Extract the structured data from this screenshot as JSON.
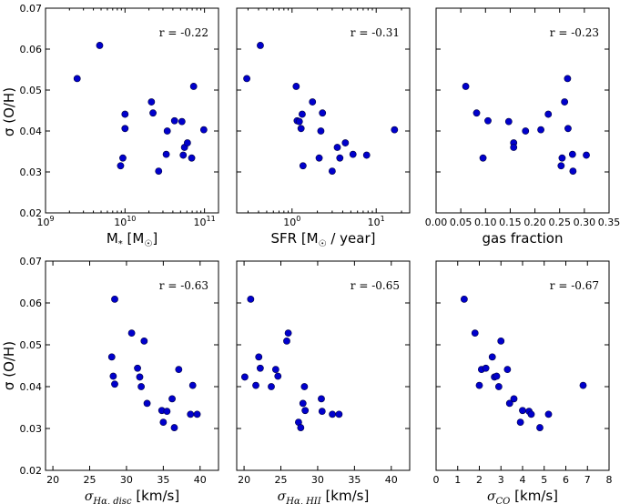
{
  "colors": {
    "marker": "#0000cc",
    "marker_edge": "#000040",
    "axes": "#000000",
    "background": "#ffffff"
  },
  "shared_ylabel": "σ (O/H)",
  "chart_data": [
    {
      "type": "scatter",
      "id": "mstar",
      "xscale": "log",
      "xlim": [
        1000000000,
        150000000000
      ],
      "ylim": [
        0.02,
        0.07
      ],
      "xticks": [
        {
          "v": 1000000000,
          "label": "10^9"
        },
        {
          "v": 10000000000,
          "label": "10^10"
        },
        {
          "v": 100000000000,
          "label": "10^11"
        }
      ],
      "yticks": [
        0.02,
        0.03,
        0.04,
        0.05,
        0.06,
        0.07
      ],
      "ytick_labels": [
        "0.02",
        "0.03",
        "0.04",
        "0.05",
        "0.06",
        "0.07"
      ],
      "xlabel": "M",
      "xlabel_sub": "*",
      "xlabel_unit": " [M",
      "xlabel_unit_sub": "☉",
      "xlabel_end": "]",
      "annotation": "r = -0.22",
      "x": [
        2500000000,
        4800000000,
        8800000000,
        9400000000,
        10000000000,
        10000000000,
        21500000000,
        22500000000,
        26500000000,
        33000000000,
        34000000000,
        42000000000,
        52000000000,
        54000000000,
        56000000000,
        61000000000,
        69000000000,
        73000000000,
        98000000000
      ],
      "y": [
        0.0528,
        0.0609,
        0.0315,
        0.0334,
        0.0406,
        0.0441,
        0.0471,
        0.0444,
        0.0302,
        0.0343,
        0.04,
        0.0425,
        0.0423,
        0.0341,
        0.036,
        0.0371,
        0.0334,
        0.0509,
        0.0403
      ]
    },
    {
      "type": "scatter",
      "id": "sfr",
      "xscale": "log",
      "xlim": [
        0.22,
        25
      ],
      "ylim": [
        0.02,
        0.07
      ],
      "xticks": [
        {
          "v": 1,
          "label": "10^0"
        },
        {
          "v": 10,
          "label": "10^1"
        }
      ],
      "yticks": [
        0.02,
        0.03,
        0.04,
        0.05,
        0.06,
        0.07
      ],
      "ytick_labels": [],
      "xlabel": "SFR [M",
      "xlabel_sub": "☉",
      "xlabel_end": " / year]",
      "annotation": "r = -0.31",
      "x": [
        0.29,
        0.42,
        1.12,
        1.15,
        1.22,
        1.28,
        1.32,
        1.35,
        1.75,
        2.1,
        2.2,
        2.3,
        3.0,
        3.45,
        3.7,
        4.3,
        5.3,
        7.7,
        16.5
      ],
      "y": [
        0.0528,
        0.0609,
        0.0509,
        0.0425,
        0.0423,
        0.0406,
        0.0441,
        0.0315,
        0.0471,
        0.0334,
        0.04,
        0.0444,
        0.0302,
        0.036,
        0.0334,
        0.0371,
        0.0343,
        0.0341,
        0.0403
      ]
    },
    {
      "type": "scatter",
      "id": "gasfrac",
      "xscale": "linear",
      "xlim": [
        0,
        0.35
      ],
      "ylim": [
        0.02,
        0.07
      ],
      "xticks": [
        {
          "v": 0,
          "label": "0.00"
        },
        {
          "v": 0.05,
          "label": "0.05"
        },
        {
          "v": 0.1,
          "label": "0.10"
        },
        {
          "v": 0.15,
          "label": "0.15"
        },
        {
          "v": 0.2,
          "label": "0.20"
        },
        {
          "v": 0.25,
          "label": "0.25"
        },
        {
          "v": 0.3,
          "label": "0.30"
        },
        {
          "v": 0.35,
          "label": "0.35"
        }
      ],
      "yticks": [
        0.02,
        0.03,
        0.04,
        0.05,
        0.06,
        0.07
      ],
      "ytick_labels": [],
      "xlabel": "gas fraction",
      "annotation": "r = -0.23",
      "x": [
        0.06,
        0.082,
        0.095,
        0.105,
        0.147,
        0.157,
        0.157,
        0.181,
        0.212,
        0.227,
        0.253,
        0.255,
        0.26,
        0.266,
        0.267,
        0.276,
        0.277,
        0.304
      ],
      "y": [
        0.0509,
        0.0444,
        0.0334,
        0.0425,
        0.0423,
        0.0371,
        0.036,
        0.04,
        0.0403,
        0.0441,
        0.0315,
        0.0334,
        0.0471,
        0.0528,
        0.0406,
        0.0343,
        0.0302,
        0.0341
      ]
    },
    {
      "type": "scatter",
      "id": "sig-disc",
      "xscale": "linear",
      "xlim": [
        19,
        42.5
      ],
      "ylim": [
        0.02,
        0.07
      ],
      "xticks": [
        {
          "v": 20,
          "label": "20"
        },
        {
          "v": 25,
          "label": "25"
        },
        {
          "v": 30,
          "label": "30"
        },
        {
          "v": 35,
          "label": "35"
        },
        {
          "v": 40,
          "label": "40"
        }
      ],
      "yticks": [
        0.02,
        0.03,
        0.04,
        0.05,
        0.06,
        0.07
      ],
      "ytick_labels": [
        "0.02",
        "0.03",
        "0.04",
        "0.05",
        "0.06",
        "0.07"
      ],
      "xlabel": "σ",
      "xlabel_sub": "Hα, disc",
      "xlabel_end": " [km/s]",
      "annotation": "r = -0.63",
      "x": [
        28.0,
        28.4,
        28.2,
        28.4,
        30.7,
        31.5,
        31.8,
        32.0,
        32.4,
        32.8,
        34.8,
        35.0,
        35.5,
        36.2,
        36.5,
        37.1,
        38.7,
        39.0,
        39.6
      ],
      "y": [
        0.0471,
        0.0609,
        0.0425,
        0.0406,
        0.0528,
        0.0444,
        0.0423,
        0.04,
        0.0509,
        0.036,
        0.0343,
        0.0315,
        0.0341,
        0.0371,
        0.0302,
        0.0441,
        0.0334,
        0.0403,
        0.0334
      ]
    },
    {
      "type": "scatter",
      "id": "sig-hii",
      "xscale": "linear",
      "xlim": [
        19,
        42.5
      ],
      "ylim": [
        0.02,
        0.07
      ],
      "xticks": [
        {
          "v": 20,
          "label": "20"
        },
        {
          "v": 25,
          "label": "25"
        },
        {
          "v": 30,
          "label": "30"
        },
        {
          "v": 35,
          "label": "35"
        },
        {
          "v": 40,
          "label": "40"
        }
      ],
      "yticks": [
        0.02,
        0.03,
        0.04,
        0.05,
        0.06,
        0.07
      ],
      "ytick_labels": [],
      "xlabel": "σ",
      "xlabel_sub": "Hα, HII",
      "xlabel_end": " [km/s]",
      "annotation": "r = -0.65",
      "x": [
        20.1,
        20.9,
        21.6,
        22.0,
        22.2,
        23.7,
        24.3,
        24.6,
        25.8,
        26.0,
        27.4,
        27.7,
        28.0,
        28.2,
        28.3,
        30.5,
        30.6,
        32.0,
        32.9
      ],
      "y": [
        0.0423,
        0.0609,
        0.0403,
        0.0471,
        0.0444,
        0.04,
        0.0441,
        0.0425,
        0.0509,
        0.0528,
        0.0315,
        0.0302,
        0.036,
        0.04,
        0.0343,
        0.0371,
        0.0341,
        0.0334,
        0.0334
      ]
    },
    {
      "type": "scatter",
      "id": "sig-co",
      "xscale": "linear",
      "xlim": [
        0,
        8
      ],
      "ylim": [
        0.02,
        0.07
      ],
      "xticks": [
        {
          "v": 0,
          "label": "0"
        },
        {
          "v": 1,
          "label": "1"
        },
        {
          "v": 2,
          "label": "2"
        },
        {
          "v": 3,
          "label": "3"
        },
        {
          "v": 4,
          "label": "4"
        },
        {
          "v": 5,
          "label": "5"
        },
        {
          "v": 6,
          "label": "6"
        },
        {
          "v": 7,
          "label": "7"
        },
        {
          "v": 8,
          "label": "8"
        }
      ],
      "yticks": [
        0.02,
        0.03,
        0.04,
        0.05,
        0.06,
        0.07
      ],
      "ytick_labels": [],
      "xlabel": "σ",
      "xlabel_sub": "CO",
      "xlabel_end": " [km/s]",
      "annotation": "r = -0.67",
      "x": [
        1.3,
        1.8,
        2.0,
        2.1,
        2.3,
        2.6,
        2.7,
        2.8,
        2.9,
        3.0,
        3.3,
        3.4,
        3.6,
        3.9,
        4.0,
        4.3,
        4.4,
        4.8,
        5.2,
        6.8
      ],
      "y": [
        0.0609,
        0.0528,
        0.0403,
        0.0441,
        0.0444,
        0.0471,
        0.0423,
        0.0425,
        0.04,
        0.0509,
        0.0441,
        0.036,
        0.0371,
        0.0315,
        0.0343,
        0.0341,
        0.0334,
        0.0302,
        0.0334,
        0.0403
      ]
    }
  ]
}
